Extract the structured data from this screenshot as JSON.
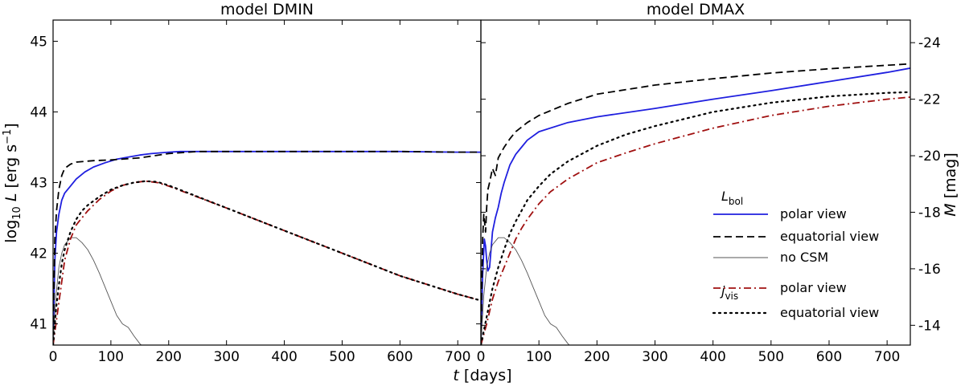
{
  "chart_data": [
    {
      "type": "line",
      "title": "model DMIN",
      "xlabel_var": "t",
      "xlabel_unit": "[days]",
      "ylabel_prefix": "log",
      "ylabel_sub": "10",
      "ylabel_var": "L",
      "ylabel_unit_pre": "[erg s",
      "ylabel_unit_sup": "−1",
      "ylabel_unit_post": "]",
      "xlim": [
        0,
        740
      ],
      "ylim": [
        40.7,
        45.3
      ],
      "xticks": [
        0,
        100,
        200,
        300,
        400,
        500,
        600,
        700
      ],
      "yticks": [
        41,
        42,
        43,
        44,
        45
      ],
      "series": [
        {
          "key": "lbol_polar",
          "color": "#1f1fdf",
          "dash": "solid",
          "x": [
            0,
            3,
            6,
            10,
            15,
            20,
            30,
            40,
            55,
            70,
            90,
            110,
            130,
            150,
            170,
            200,
            220,
            300,
            400,
            500,
            600,
            700,
            740
          ],
          "y": [
            40.7,
            41.9,
            42.3,
            42.55,
            42.75,
            42.85,
            42.95,
            43.05,
            43.15,
            43.22,
            43.28,
            43.33,
            43.36,
            43.39,
            43.41,
            43.43,
            43.44,
            43.44,
            43.44,
            43.44,
            43.44,
            43.43,
            43.43
          ]
        },
        {
          "key": "lbol_eq",
          "color": "#000000",
          "dash": "dashed",
          "x": [
            0,
            3,
            6,
            10,
            15,
            20,
            30,
            40,
            55,
            70,
            100,
            150,
            200,
            250,
            300,
            400,
            500,
            600,
            700,
            740
          ],
          "y": [
            40.7,
            42.2,
            42.6,
            42.9,
            43.1,
            43.2,
            43.26,
            43.29,
            43.3,
            43.31,
            43.32,
            43.35,
            43.41,
            43.44,
            43.44,
            43.44,
            43.44,
            43.44,
            43.43,
            43.43
          ]
        },
        {
          "key": "nocsm",
          "color": "#555555",
          "dash": "thin",
          "x": [
            0,
            5,
            10,
            15,
            20,
            30,
            40,
            50,
            60,
            70,
            80,
            90,
            100,
            110,
            120,
            130,
            140,
            150,
            155
          ],
          "y": [
            40.7,
            41.4,
            41.8,
            42.0,
            42.12,
            42.22,
            42.22,
            42.15,
            42.05,
            41.9,
            41.72,
            41.52,
            41.32,
            41.12,
            41.0,
            40.95,
            40.83,
            40.72,
            40.68
          ]
        },
        {
          "key": "jvis_polar",
          "color": "#a01010",
          "dash": "dashdot",
          "x": [
            0,
            5,
            10,
            15,
            20,
            30,
            40,
            50,
            60,
            80,
            100,
            120,
            140,
            160,
            180,
            200,
            300,
            400,
            500,
            600,
            700,
            740
          ],
          "y": [
            40.7,
            41.0,
            41.3,
            41.6,
            41.9,
            42.2,
            42.4,
            42.5,
            42.6,
            42.76,
            42.88,
            42.96,
            43.0,
            43.02,
            43.0,
            42.95,
            42.64,
            42.32,
            42.0,
            41.68,
            41.42,
            41.33
          ]
        },
        {
          "key": "jvis_eq",
          "color": "#000000",
          "dash": "dotted",
          "x": [
            0,
            5,
            10,
            15,
            20,
            30,
            40,
            50,
            60,
            80,
            100,
            120,
            140,
            160,
            180,
            200,
            300,
            400,
            500,
            600,
            700,
            740
          ],
          "y": [
            40.7,
            41.2,
            41.55,
            41.85,
            42.05,
            42.3,
            42.48,
            42.6,
            42.68,
            42.8,
            42.9,
            42.96,
            43.0,
            43.02,
            43.01,
            42.96,
            42.64,
            42.32,
            42.0,
            41.68,
            41.42,
            41.33
          ]
        }
      ]
    },
    {
      "type": "line",
      "title": "model DMAX",
      "xlim": [
        0,
        740
      ],
      "ylim": [
        40.7,
        45.3
      ],
      "xticks": [
        0,
        100,
        200,
        300,
        400,
        500,
        600,
        700
      ],
      "right_axis": {
        "label_var": "M",
        "label_unit": "[mag]",
        "ticks_mag": [
          -24,
          -22,
          -20,
          -18,
          -16,
          -14
        ],
        "tick_logL": [
          44.98,
          44.18,
          43.38,
          42.58,
          41.78,
          40.98
        ]
      },
      "series": [
        {
          "key": "lbol_polar",
          "color": "#1f1fdf",
          "dash": "solid",
          "x": [
            0,
            3,
            6,
            8,
            10,
            12,
            15,
            18,
            20,
            25,
            30,
            35,
            40,
            50,
            60,
            70,
            80,
            100,
            150,
            200,
            300,
            400,
            500,
            600,
            700,
            740
          ],
          "y": [
            40.7,
            41.7,
            42.2,
            42.1,
            41.9,
            41.75,
            41.8,
            42.1,
            42.3,
            42.5,
            42.65,
            42.85,
            43.0,
            43.25,
            43.4,
            43.5,
            43.6,
            43.72,
            43.85,
            43.93,
            44.05,
            44.18,
            44.3,
            44.43,
            44.56,
            44.62
          ]
        },
        {
          "key": "lbol_eq",
          "color": "#000000",
          "dash": "dashed",
          "x": [
            0,
            3,
            5,
            8,
            10,
            12,
            15,
            20,
            25,
            30,
            40,
            50,
            60,
            80,
            100,
            150,
            200,
            300,
            400,
            500,
            600,
            700,
            740
          ],
          "y": [
            40.7,
            42.2,
            42.55,
            42.3,
            42.65,
            42.9,
            43.0,
            43.2,
            43.1,
            43.35,
            43.5,
            43.62,
            43.72,
            43.85,
            43.95,
            44.12,
            44.25,
            44.38,
            44.47,
            44.55,
            44.61,
            44.66,
            44.68
          ]
        },
        {
          "key": "nocsm",
          "color": "#555555",
          "dash": "thin",
          "x": [
            0,
            5,
            10,
            15,
            20,
            30,
            40,
            50,
            60,
            70,
            80,
            90,
            100,
            110,
            120,
            130,
            140,
            150,
            155
          ],
          "y": [
            40.7,
            41.4,
            41.8,
            42.0,
            42.12,
            42.22,
            42.22,
            42.15,
            42.05,
            41.9,
            41.72,
            41.52,
            41.32,
            41.12,
            41.0,
            40.95,
            40.83,
            40.72,
            40.68
          ]
        },
        {
          "key": "jvis_polar",
          "color": "#a01010",
          "dash": "dashdot",
          "x": [
            0,
            10,
            20,
            30,
            40,
            50,
            60,
            70,
            80,
            100,
            120,
            150,
            200,
            250,
            300,
            400,
            500,
            600,
            700,
            740
          ],
          "y": [
            40.7,
            41.0,
            41.35,
            41.6,
            41.8,
            42.0,
            42.2,
            42.35,
            42.48,
            42.7,
            42.87,
            43.05,
            43.28,
            43.42,
            43.55,
            43.77,
            43.95,
            44.08,
            44.18,
            44.21
          ]
        },
        {
          "key": "jvis_eq",
          "color": "#000000",
          "dash": "dotted",
          "x": [
            0,
            10,
            20,
            30,
            40,
            50,
            60,
            70,
            80,
            100,
            120,
            150,
            200,
            250,
            300,
            400,
            500,
            600,
            700,
            740
          ],
          "y": [
            40.7,
            41.1,
            41.5,
            41.8,
            42.05,
            42.28,
            42.45,
            42.6,
            42.75,
            42.95,
            43.12,
            43.3,
            43.52,
            43.68,
            43.8,
            44.0,
            44.13,
            44.22,
            44.27,
            44.28
          ]
        }
      ]
    }
  ],
  "legend": {
    "placement": "right of DMAX panel",
    "group1": {
      "var": "L",
      "sub": "bol"
    },
    "group2": {
      "var": "j",
      "sub": "vis"
    },
    "entries": [
      {
        "key": "lbol_polar",
        "label": "polar view"
      },
      {
        "key": "lbol_eq",
        "label": "equatorial view"
      },
      {
        "key": "nocsm",
        "label": "no CSM"
      },
      {
        "key": "jvis_polar",
        "label": "polar view"
      },
      {
        "key": "jvis_eq",
        "label": "equatorial view"
      }
    ]
  }
}
